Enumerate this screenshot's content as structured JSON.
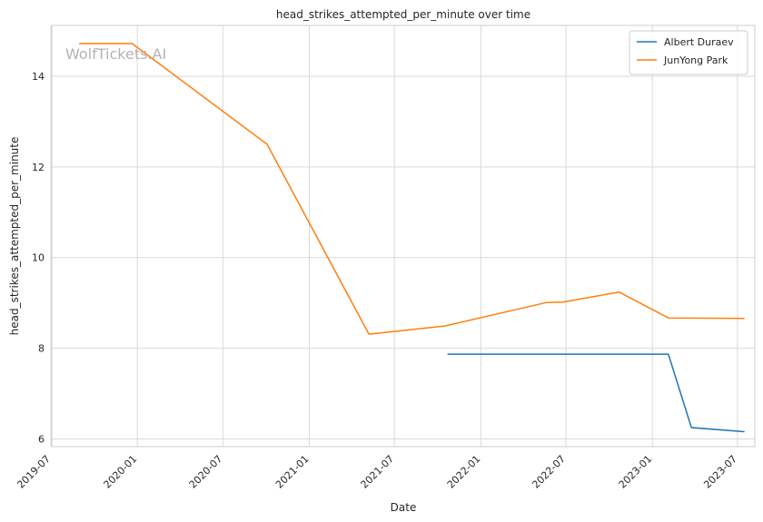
{
  "chart_data": {
    "type": "line",
    "title": "head_strikes_attempted_per_minute over time",
    "xlabel": "Date",
    "ylabel": "head_strikes_attempted_per_minute",
    "watermark": "WolfTickets.AI",
    "x_axis_type": "date",
    "xlim": [
      "2019-07-03",
      "2023-08-07"
    ],
    "ylim": [
      5.83,
      15.12
    ],
    "x_ticks": [
      {
        "date": "2019-07-01",
        "label": "2019-07"
      },
      {
        "date": "2020-01-01",
        "label": "2020-01"
      },
      {
        "date": "2020-07-01",
        "label": "2020-07"
      },
      {
        "date": "2021-01-01",
        "label": "2021-01"
      },
      {
        "date": "2021-07-01",
        "label": "2021-07"
      },
      {
        "date": "2022-01-01",
        "label": "2022-01"
      },
      {
        "date": "2022-07-01",
        "label": "2022-07"
      },
      {
        "date": "2023-01-01",
        "label": "2023-01"
      },
      {
        "date": "2023-07-01",
        "label": "2023-07"
      }
    ],
    "y_ticks": [
      6,
      8,
      10,
      12,
      14
    ],
    "x_tick_rotation": "45 degrees",
    "grid": true,
    "legend_position": "top-right",
    "series": [
      {
        "name": "Albert Duraev",
        "color": "#1f77b4",
        "points": [
          {
            "x": "2021-10-23",
            "y": 7.87
          },
          {
            "x": "2023-02-04",
            "y": 7.87
          },
          {
            "x": "2023-03-25",
            "y": 6.25
          },
          {
            "x": "2023-07-15",
            "y": 6.16
          }
        ]
      },
      {
        "name": "JunYong Park",
        "color": "#ff7f0e",
        "points": [
          {
            "x": "2019-08-31",
            "y": 14.72
          },
          {
            "x": "2019-12-21",
            "y": 14.72
          },
          {
            "x": "2020-10-03",
            "y": 12.5
          },
          {
            "x": "2021-05-08",
            "y": 8.31
          },
          {
            "x": "2021-10-16",
            "y": 8.49
          },
          {
            "x": "2022-05-21",
            "y": 9.01
          },
          {
            "x": "2022-06-25",
            "y": 9.02
          },
          {
            "x": "2022-10-22",
            "y": 9.24
          },
          {
            "x": "2023-02-04",
            "y": 8.67
          },
          {
            "x": "2023-07-15",
            "y": 8.66
          }
        ]
      }
    ]
  }
}
